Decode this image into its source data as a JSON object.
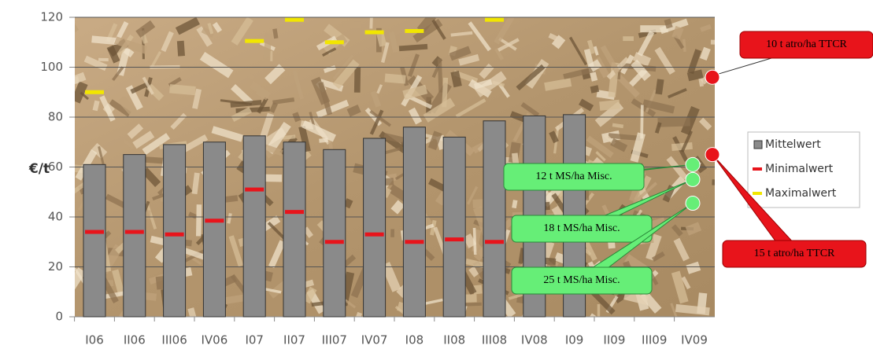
{
  "chart_data": {
    "type": "bar",
    "y_label": "€/t",
    "categories": [
      "I06",
      "II06",
      "III06",
      "IV06",
      "I07",
      "II07",
      "III07",
      "IV07",
      "I08",
      "II08",
      "III08",
      "IV08",
      "I09",
      "II09",
      "III09",
      "IV09"
    ],
    "series": [
      {
        "name": "Mittelwert",
        "color": "#8a8a8a",
        "values": [
          61,
          65,
          69,
          70,
          72.5,
          70,
          67,
          71.5,
          76,
          72,
          78.5,
          80.5,
          81,
          null,
          null,
          null
        ]
      },
      {
        "name": "Minimalwert",
        "color": "#e8141b",
        "values": [
          34,
          34,
          33,
          38.5,
          51,
          42,
          30,
          33,
          30,
          31,
          30,
          null,
          null,
          null,
          null,
          null
        ]
      },
      {
        "name": "Maximalwert",
        "color": "#f2e600",
        "values": [
          90,
          null,
          null,
          null,
          110.5,
          119,
          110,
          114,
          114.5,
          null,
          119,
          null,
          null,
          null,
          null,
          null
        ]
      }
    ],
    "points": [
      {
        "label": "10 t atro/ha TTCR",
        "value": 96,
        "color": "#e8141b"
      },
      {
        "label": "15 t atro/ha TTCR",
        "value": 65,
        "color": "#e8141b"
      },
      {
        "label": "12 t MS/ha Misc.",
        "value": 61,
        "color": "#66ee77"
      },
      {
        "label": "18 t MS/ha Misc.",
        "value": 55,
        "color": "#66ee77"
      },
      {
        "label": "25 t MS/ha Misc.",
        "value": 45.5,
        "color": "#66ee77"
      }
    ],
    "ylim": [
      0,
      120
    ],
    "yticks": [
      0,
      20,
      40,
      60,
      80,
      100,
      120
    ],
    "grid": true
  }
}
